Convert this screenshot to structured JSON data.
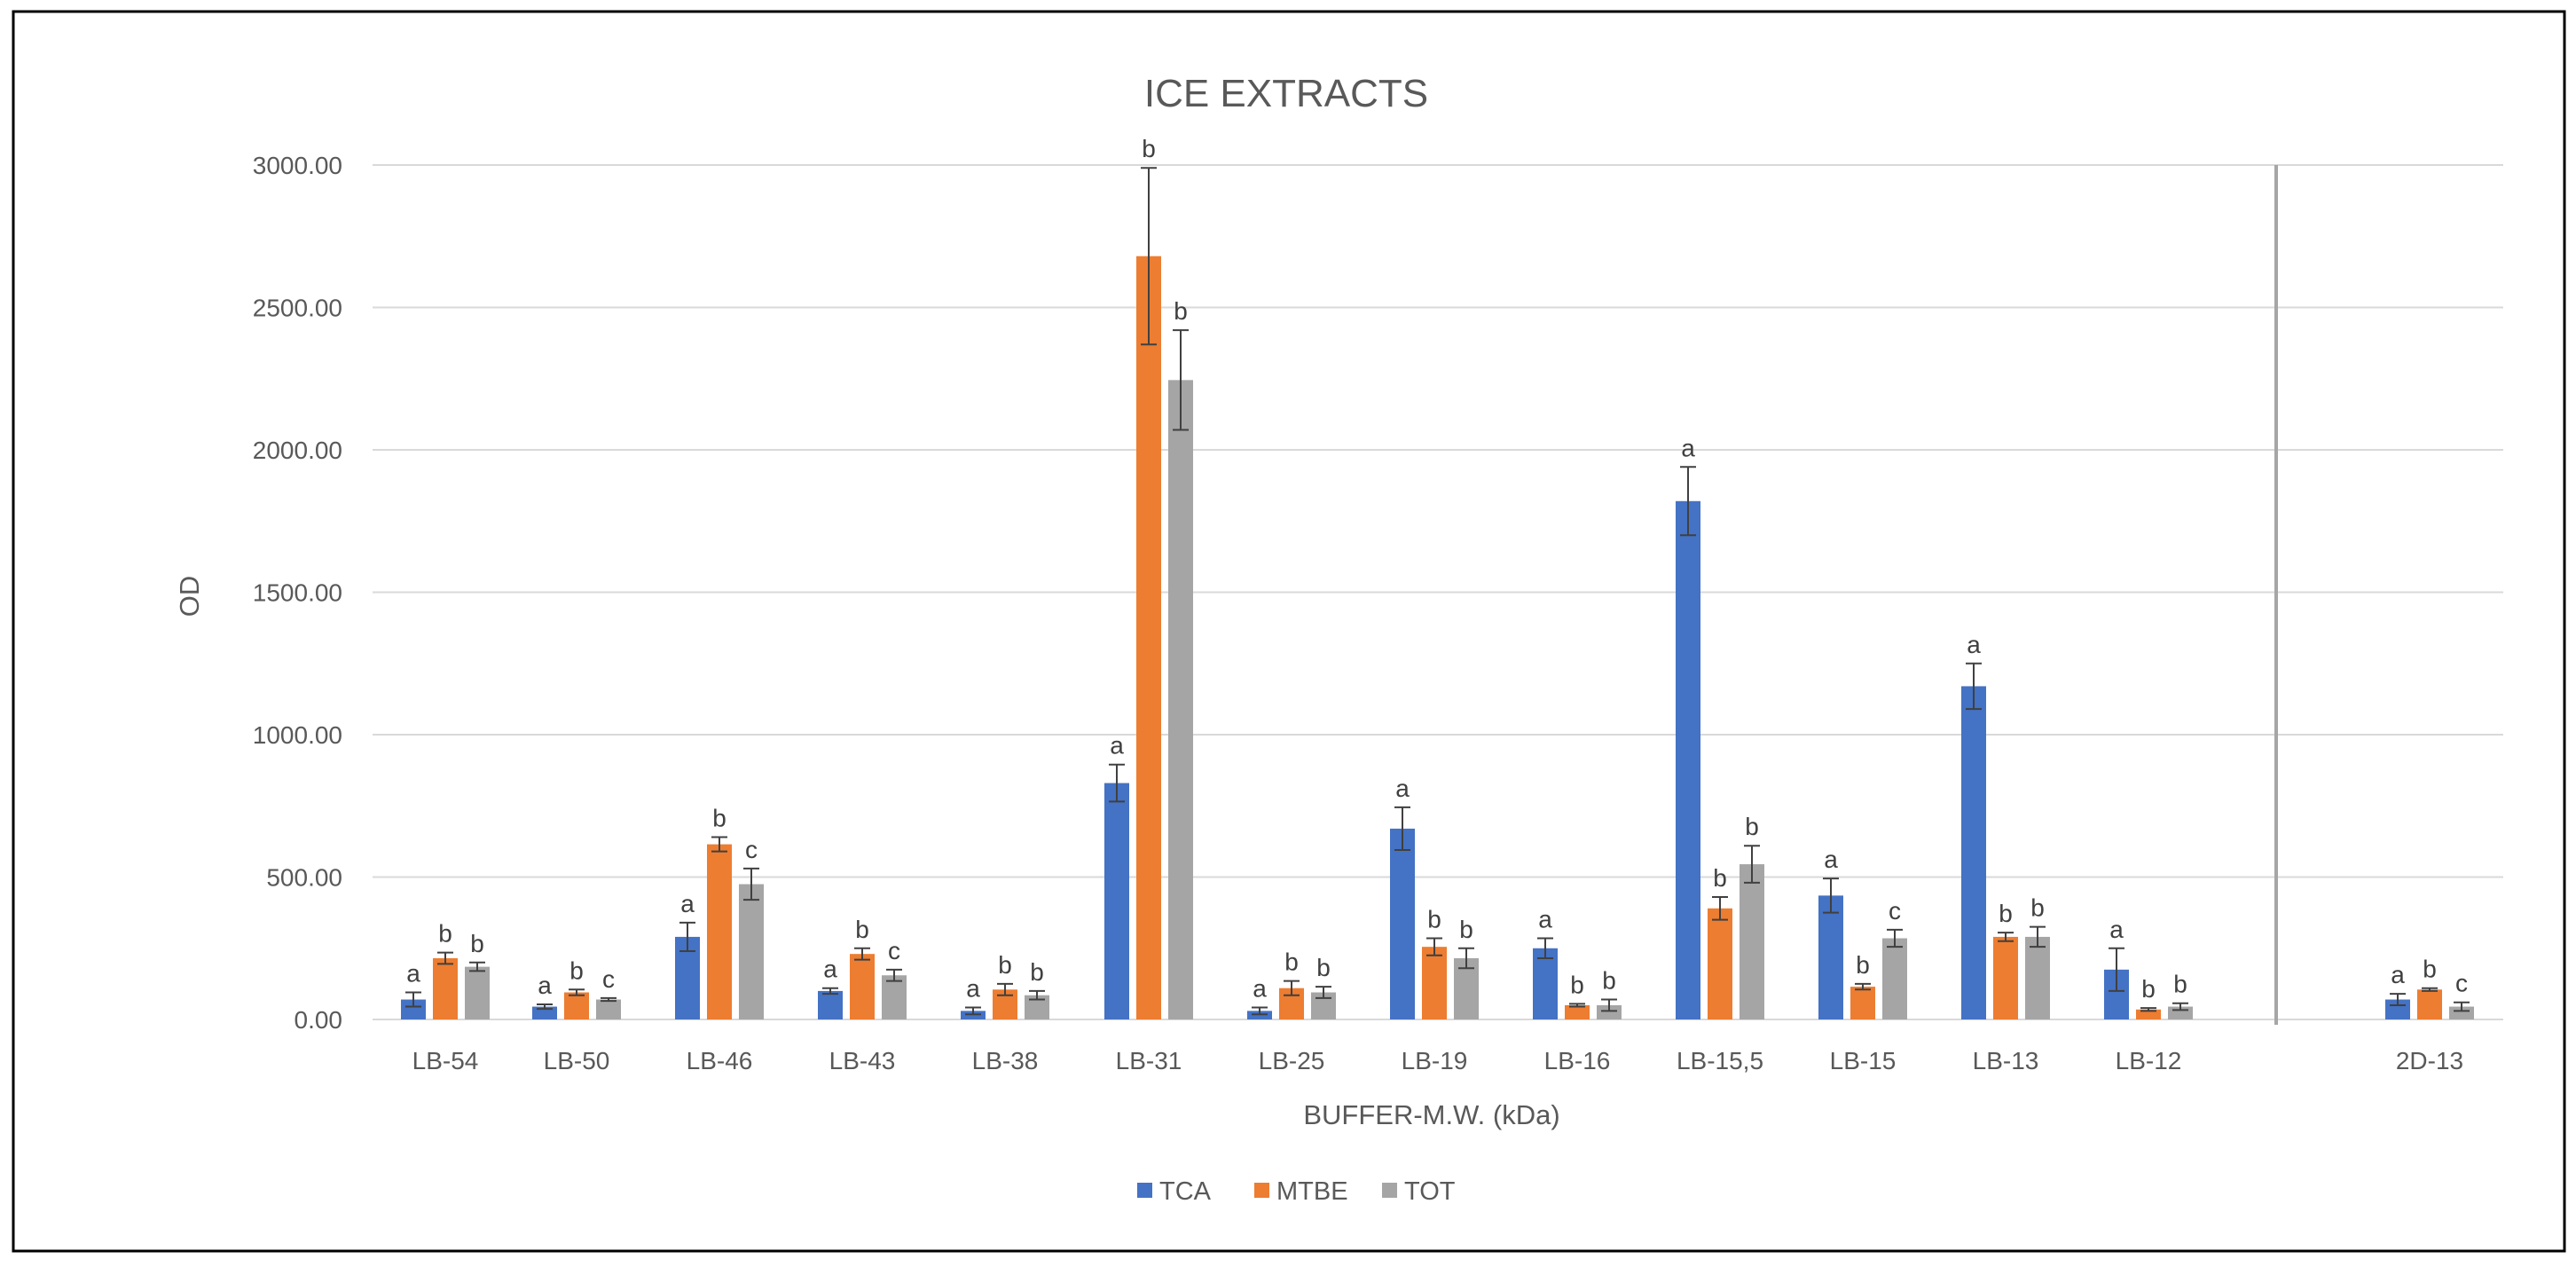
{
  "chart_data": {
    "type": "bar",
    "title": "ICE EXTRACTS",
    "xlabel": "BUFFER-M.W. (kDa)",
    "ylabel": "OD",
    "ylim": [
      0,
      3000
    ],
    "yticks": [
      "0.00",
      "500.00",
      "1000.00",
      "1500.00",
      "2000.00",
      "2500.00",
      "3000.00"
    ],
    "grid": true,
    "legend_position": "bottom",
    "colors": {
      "TCA": "#4472c4",
      "MTBE": "#ed7d31",
      "TOT": "#a5a5a5",
      "grid": "#d9d9d9",
      "border": "#000000",
      "separator": "#a6a6a6"
    },
    "categories": [
      "LB-54",
      "LB-50",
      "LB-46",
      "LB-43",
      "LB-38",
      "LB-31",
      "LB-25",
      "LB-19",
      "LB-16",
      "LB-15,5",
      "LB-15",
      "LB-13",
      "LB-12",
      "2D-13"
    ],
    "series": [
      {
        "name": "TCA",
        "values": [
          70,
          45,
          290,
          100,
          30,
          830,
          30,
          670,
          250,
          1820,
          435,
          1170,
          175,
          70
        ],
        "errors": [
          25,
          8,
          50,
          10,
          12,
          65,
          12,
          75,
          35,
          120,
          60,
          80,
          75,
          20
        ],
        "labels": [
          "a",
          "a",
          "a",
          "a",
          "a",
          "a",
          "a",
          "a",
          "a",
          "a",
          "a",
          "a",
          "a",
          "a"
        ]
      },
      {
        "name": "MTBE",
        "values": [
          215,
          95,
          615,
          230,
          105,
          2680,
          110,
          255,
          50,
          390,
          115,
          290,
          35,
          105
        ],
        "errors": [
          20,
          10,
          25,
          20,
          20,
          310,
          25,
          30,
          5,
          40,
          10,
          15,
          5,
          5
        ],
        "labels": [
          "b",
          "b",
          "b",
          "b",
          "b",
          "b",
          "b",
          "b",
          "b",
          "b",
          "b",
          "b",
          "b",
          "b"
        ]
      },
      {
        "name": "TOT",
        "values": [
          185,
          70,
          475,
          155,
          85,
          2245,
          95,
          215,
          50,
          545,
          285,
          290,
          45,
          45
        ],
        "errors": [
          15,
          5,
          55,
          20,
          15,
          175,
          20,
          35,
          20,
          65,
          30,
          35,
          12,
          15
        ],
        "labels": [
          "b",
          "c",
          "c",
          "c",
          "b",
          "b",
          "b",
          "b",
          "b",
          "b",
          "c",
          "b",
          "b",
          "c"
        ]
      }
    ]
  }
}
